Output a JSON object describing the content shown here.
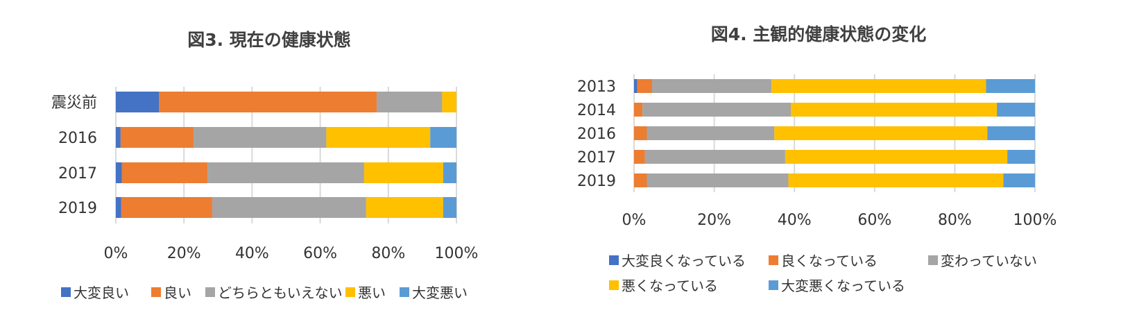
{
  "chart_data": [
    {
      "type": "bar",
      "orientation": "horizontal",
      "stacked": "percent",
      "title": "図3. 現在の健康状態",
      "categories": [
        "震災前",
        "2016",
        "2017",
        "2019"
      ],
      "xlim": [
        0,
        100
      ],
      "x_ticks": [
        "0%",
        "20%",
        "40%",
        "60%",
        "80%",
        "100%"
      ],
      "grid": true,
      "legend_position": "bottom",
      "series": [
        {
          "name": "大変良い",
          "color": "#4472C4",
          "values": [
            12.7,
            1.4,
            1.8,
            1.6
          ]
        },
        {
          "name": "良い",
          "color": "#ED7D31",
          "values": [
            63.9,
            21.4,
            25.1,
            26.7
          ]
        },
        {
          "name": "どちらともいえない",
          "color": "#A5A5A5",
          "values": [
            19.2,
            39.0,
            46.0,
            45.2
          ]
        },
        {
          "name": "悪い",
          "color": "#FFC000",
          "values": [
            4.2,
            30.5,
            23.2,
            22.6
          ]
        },
        {
          "name": "大変悪い",
          "color": "#5B9BD5",
          "values": [
            0,
            7.7,
            3.9,
            3.9
          ]
        }
      ]
    },
    {
      "type": "bar",
      "orientation": "horizontal",
      "stacked": "percent",
      "title": "図4. 主観的健康状態の変化",
      "categories": [
        "2013",
        "2014",
        "2016",
        "2017",
        "2019"
      ],
      "xlim": [
        0,
        100
      ],
      "x_ticks": [
        "0%",
        "20%",
        "40%",
        "60%",
        "80%",
        "100%"
      ],
      "grid": true,
      "legend_position": "bottom",
      "series": [
        {
          "name": "大変良くなっている",
          "color": "#4472C4",
          "values": [
            0.8,
            0,
            0,
            0,
            0
          ]
        },
        {
          "name": "良くなっている",
          "color": "#ED7D31",
          "values": [
            3.7,
            2.1,
            3.2,
            2.7,
            3.2
          ]
        },
        {
          "name": "変わっていない",
          "color": "#A5A5A5",
          "values": [
            29.8,
            37.0,
            31.8,
            35.0,
            35.3
          ]
        },
        {
          "name": "悪くなっている",
          "color": "#FFC000",
          "values": [
            53.5,
            51.4,
            53.1,
            55.4,
            53.6
          ]
        },
        {
          "name": "大変悪くなっている",
          "color": "#5B9BD5",
          "values": [
            12.2,
            9.5,
            11.9,
            6.9,
            7.9
          ]
        }
      ]
    }
  ]
}
